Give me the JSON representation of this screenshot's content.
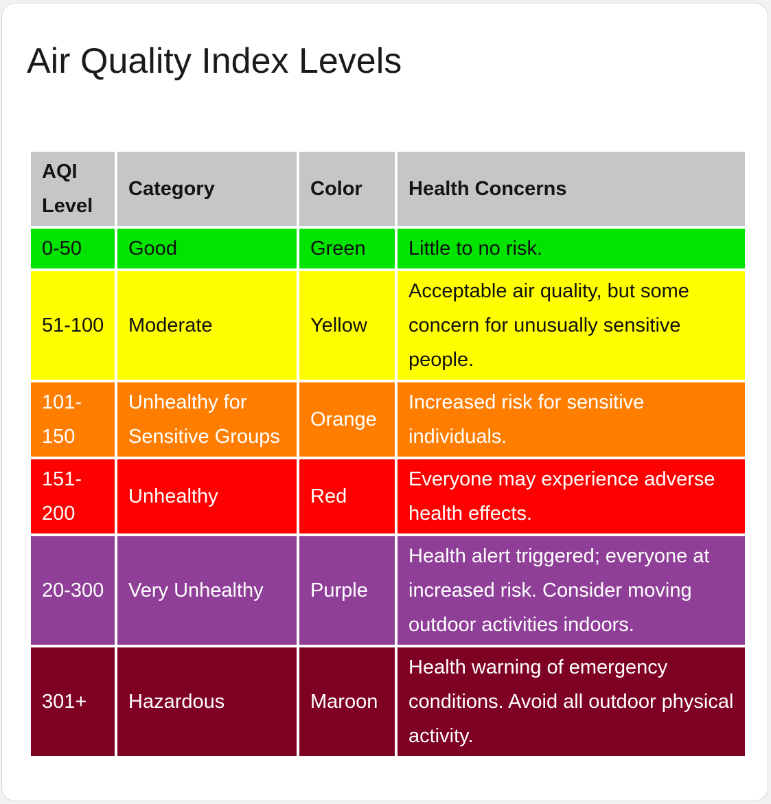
{
  "title": "Air Quality Index Levels",
  "table": {
    "headers": [
      "AQI Level",
      "Category",
      "Color",
      "Health Concerns"
    ],
    "rows": [
      {
        "level": "0-50",
        "category": "Good",
        "color_name": "Green",
        "concern": "Little to no risk.",
        "bg": "#00e400",
        "fg": "#111111"
      },
      {
        "level": "51-100",
        "category": "Moderate",
        "color_name": "Yellow",
        "concern": "Acceptable air quality, but some concern for unusually sensitive people.",
        "bg": "#ffff00",
        "fg": "#111111"
      },
      {
        "level": "101-150",
        "category": "Unhealthy for Sensitive Groups",
        "color_name": "Orange",
        "concern": "Increased risk for sensitive individuals.",
        "bg": "#ff7e00",
        "fg": "#ffffff"
      },
      {
        "level": "151-200",
        "category": "Unhealthy",
        "color_name": "Red",
        "concern": "Everyone may experience adverse health effects.",
        "bg": "#ff0000",
        "fg": "#ffffff"
      },
      {
        "level": "20-300",
        "category": "Very Unhealthy",
        "color_name": "Purple",
        "concern": "Health alert triggered; everyone at increased risk. Consider moving outdoor activities indoors.",
        "bg": "#8f3f97",
        "fg": "#ffffff"
      },
      {
        "level": "301+",
        "category": "Hazardous",
        "color_name": "Maroon",
        "concern": "Health warning of emergency conditions. Avoid all outdoor physical activity.",
        "bg": "#7e0023",
        "fg": "#ffffff"
      }
    ]
  },
  "colors": {
    "header_bg": "#c5c6c8",
    "card_bg": "#ffffff",
    "page_bg": "#f2f2f2"
  }
}
